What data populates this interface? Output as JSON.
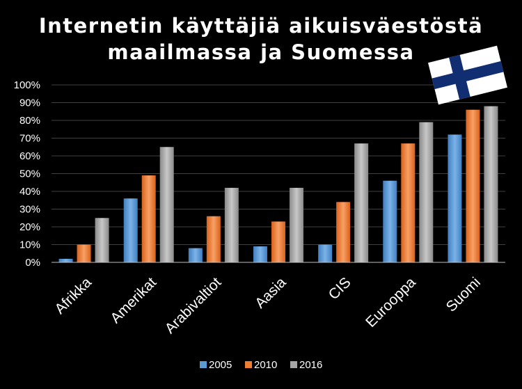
{
  "chart_data": {
    "type": "bar",
    "title_lines": [
      "Internetin käyttäjiä aikuisväestöstä",
      "maailmassa ja Suomessa"
    ],
    "xlabel": "",
    "ylabel": "",
    "ylim": [
      0,
      100
    ],
    "y_unit": "%",
    "yticks": [
      "0%",
      "10%",
      "20%",
      "30%",
      "40%",
      "50%",
      "60%",
      "70%",
      "80%",
      "90%",
      "100%"
    ],
    "categories": [
      "Afrikka",
      "Amerikat",
      "Arabivaltiot",
      "Aasia",
      "CIS",
      "Eurooppa",
      "Suomi"
    ],
    "series": [
      {
        "name": "2005",
        "color": "#5b9bd5",
        "values": [
          2,
          36,
          8,
          9,
          10,
          46,
          72
        ]
      },
      {
        "name": "2010",
        "color": "#ed7d31",
        "values": [
          10,
          49,
          26,
          23,
          34,
          67,
          86
        ]
      },
      {
        "name": "2016",
        "color": "#a5a5a5",
        "values": [
          25,
          65,
          42,
          42,
          67,
          79,
          88
        ]
      }
    ],
    "grid": true,
    "legend": "bottom",
    "decoration": "finnish-flag-icon"
  }
}
